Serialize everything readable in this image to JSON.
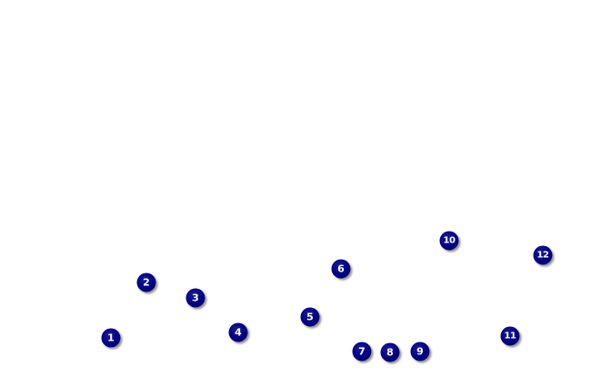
{
  "markers": [
    {
      "label": "1"
    },
    {
      "label": "2"
    },
    {
      "label": "3"
    },
    {
      "label": "4"
    },
    {
      "label": "5"
    },
    {
      "label": "6"
    },
    {
      "label": "7"
    },
    {
      "label": "8"
    },
    {
      "label": "9"
    },
    {
      "label": "10"
    },
    {
      "label": "11"
    },
    {
      "label": "12"
    }
  ],
  "colors": {
    "marker_fill": "#000080",
    "marker_text": "#ffffff",
    "background": "#ffffff"
  }
}
